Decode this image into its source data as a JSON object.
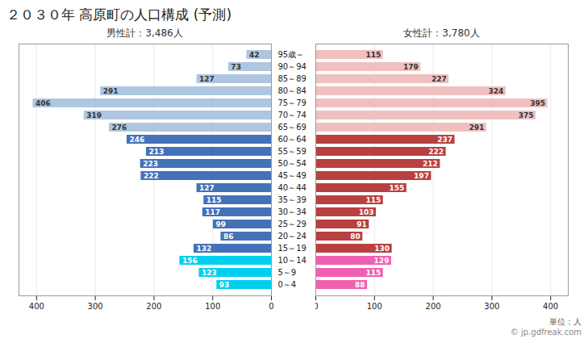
{
  "chart_data": {
    "type": "bar",
    "orientation": "horizontal",
    "title": "２０３０年 高原町の人口構成 (予測)",
    "categories": [
      "0～4",
      "5～9",
      "10～14",
      "15～19",
      "20～24",
      "25～29",
      "30～34",
      "35～39",
      "40～44",
      "45～49",
      "50～54",
      "55～59",
      "60～64",
      "65～69",
      "70～74",
      "75～79",
      "80～84",
      "85～89",
      "90～94",
      "95歳～"
    ],
    "series": [
      {
        "name": "男性計：3,486人",
        "values": [
          93,
          123,
          156,
          132,
          86,
          99,
          117,
          115,
          127,
          222,
          223,
          213,
          246,
          276,
          319,
          406,
          291,
          127,
          73,
          42
        ],
        "colors": [
          "#00d0f0",
          "#00d0f0",
          "#00d0f0",
          "#4472b8",
          "#4472b8",
          "#4472b8",
          "#4472b8",
          "#4472b8",
          "#4472b8",
          "#4472b8",
          "#4472b8",
          "#4472b8",
          "#4472b8",
          "#aec6e0",
          "#aec6e0",
          "#aec6e0",
          "#aec6e0",
          "#aec6e0",
          "#aec6e0",
          "#aec6e0"
        ]
      },
      {
        "name": "女性計：3,780人",
        "values": [
          88,
          115,
          129,
          130,
          80,
          91,
          103,
          115,
          155,
          197,
          212,
          222,
          237,
          291,
          375,
          395,
          324,
          227,
          179,
          115
        ],
        "colors": [
          "#f060b0",
          "#f060b0",
          "#f060b0",
          "#b94040",
          "#b94040",
          "#b94040",
          "#b94040",
          "#b94040",
          "#b94040",
          "#b94040",
          "#b94040",
          "#b94040",
          "#b94040",
          "#f0c0c0",
          "#f0c0c0",
          "#f0c0c0",
          "#f0c0c0",
          "#f0c0c0",
          "#f0c0c0",
          "#f0c0c0"
        ]
      }
    ],
    "xlim": [
      0,
      430
    ],
    "xticks": [
      0,
      100,
      200,
      300,
      400
    ],
    "grid": true,
    "data_labels": true,
    "annotations": [
      "単位：人",
      "© jp.gdfreak.com"
    ]
  }
}
